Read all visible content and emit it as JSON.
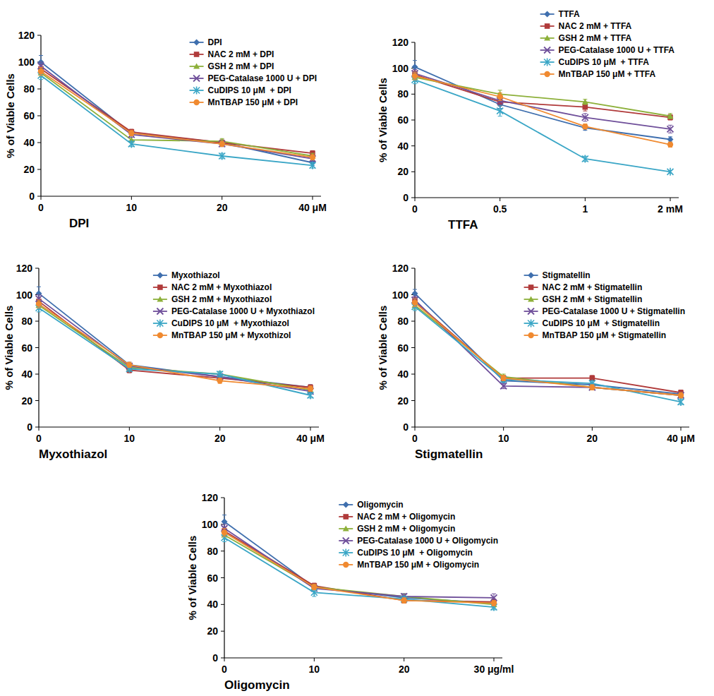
{
  "chart_data": [
    {
      "type": "line",
      "x_label": "DPI",
      "y_label": "% of Viable Cells",
      "categories": [
        "0",
        "10",
        "20",
        "40 μM"
      ],
      "ylim": [
        0,
        120
      ],
      "yticks": [
        0,
        20,
        40,
        60,
        80,
        100,
        120
      ],
      "grid": false,
      "legend": "top-right",
      "series": [
        {
          "name": "DPI",
          "color": "#3f6fae",
          "marker": "diamond",
          "values": [
            100,
            47,
            40,
            25
          ],
          "errors": [
            5,
            2,
            2,
            2
          ]
        },
        {
          "name": "NAC 2 mM + DPI",
          "color": "#b03a3a",
          "marker": "square",
          "values": [
            95,
            48,
            40,
            32
          ],
          "errors": [
            3,
            2,
            2,
            2
          ]
        },
        {
          "name": "GSH 2 mM + DPI",
          "color": "#8db03a",
          "marker": "triangle",
          "values": [
            92,
            42,
            41,
            30
          ],
          "errors": [
            3,
            2,
            2,
            2
          ]
        },
        {
          "name": "PEG-Catalase 1000 U + DPI",
          "color": "#6f4f9a",
          "marker": "x",
          "values": [
            97,
            46,
            39,
            28
          ],
          "errors": [
            3,
            2,
            2,
            2
          ]
        },
        {
          "name": "CuDIPS 10 μM  + DPI",
          "color": "#3aa6c6",
          "marker": "star",
          "values": [
            90,
            39,
            30,
            23
          ],
          "errors": [
            3,
            2,
            2,
            2
          ]
        },
        {
          "name": "MnTBAP 150 μM + DPI",
          "color": "#f08a30",
          "marker": "circle",
          "values": [
            93,
            47,
            39,
            29
          ],
          "errors": [
            3,
            2,
            2,
            2
          ]
        }
      ]
    },
    {
      "type": "line",
      "x_label": "TTFA",
      "y_label": "% of Viable Cells",
      "categories": [
        "0",
        "0.5",
        "1",
        "2 mM"
      ],
      "ylim": [
        0,
        120
      ],
      "yticks": [
        0,
        20,
        40,
        60,
        80,
        100,
        120
      ],
      "grid": false,
      "legend": "top-right",
      "series": [
        {
          "name": "TTFA",
          "color": "#3f6fae",
          "marker": "diamond",
          "values": [
            101,
            72,
            54,
            45
          ],
          "errors": [
            5,
            3,
            2,
            2
          ]
        },
        {
          "name": "NAC 2 mM + TTFA",
          "color": "#b03a3a",
          "marker": "square",
          "values": [
            95,
            74,
            70,
            62
          ],
          "errors": [
            3,
            3,
            3,
            2
          ]
        },
        {
          "name": "GSH 2 mM + TTFA",
          "color": "#8db03a",
          "marker": "triangle",
          "values": [
            93,
            80,
            74,
            63
          ],
          "errors": [
            3,
            3,
            2,
            2
          ]
        },
        {
          "name": "PEG-Catalase 1000 U + TTFA",
          "color": "#6f4f9a",
          "marker": "x",
          "values": [
            96,
            75,
            62,
            53
          ],
          "errors": [
            3,
            3,
            3,
            3
          ]
        },
        {
          "name": "CuDIPS 10 μM  + TTFA",
          "color": "#3aa6c6",
          "marker": "star",
          "values": [
            91,
            67,
            30,
            20
          ],
          "errors": [
            3,
            4,
            2,
            1
          ]
        },
        {
          "name": "MnTBAP 150 μM + TTFA",
          "color": "#f08a30",
          "marker": "circle",
          "values": [
            94,
            78,
            55,
            41
          ],
          "errors": [
            3,
            3,
            2,
            2
          ]
        }
      ]
    },
    {
      "type": "line",
      "x_label": "Myxothiazol",
      "y_label": "% of Viable Cells",
      "categories": [
        "0",
        "10",
        "20",
        "40 μM"
      ],
      "ylim": [
        0,
        120
      ],
      "yticks": [
        0,
        20,
        40,
        60,
        80,
        100,
        120
      ],
      "grid": false,
      "legend": "top-right",
      "series": [
        {
          "name": "Myxothiazol",
          "color": "#3f6fae",
          "marker": "diamond",
          "values": [
            101,
            47,
            38,
            30
          ],
          "errors": [
            5,
            2,
            2,
            2
          ]
        },
        {
          "name": "NAC 2 mM + Myxothiazol",
          "color": "#b03a3a",
          "marker": "square",
          "values": [
            95,
            43,
            37,
            30
          ],
          "errors": [
            3,
            2,
            2,
            2
          ]
        },
        {
          "name": "GSH 2 mM + Myxothiazol",
          "color": "#8db03a",
          "marker": "triangle",
          "values": [
            92,
            45,
            40,
            28
          ],
          "errors": [
            3,
            2,
            2,
            2
          ]
        },
        {
          "name": "PEG-Catalase 1000 U + Myxothiazol",
          "color": "#6f4f9a",
          "marker": "x",
          "values": [
            97,
            46,
            38,
            27
          ],
          "errors": [
            3,
            2,
            2,
            2
          ]
        },
        {
          "name": "CuDIPS 10 μM  + Myxothiazol",
          "color": "#3aa6c6",
          "marker": "star",
          "values": [
            90,
            44,
            40,
            24
          ],
          "errors": [
            3,
            2,
            2,
            2
          ]
        },
        {
          "name": "MnTBAP 150 μM + Myxothizol",
          "color": "#f08a30",
          "marker": "circle",
          "values": [
            93,
            47,
            35,
            29
          ],
          "errors": [
            3,
            2,
            2,
            2
          ]
        }
      ]
    },
    {
      "type": "line",
      "x_label": "Stigmatellin",
      "y_label": "% of Viable Cells",
      "categories": [
        "0",
        "10",
        "20",
        "40 μM"
      ],
      "ylim": [
        0,
        120
      ],
      "yticks": [
        0,
        20,
        40,
        60,
        80,
        100,
        120
      ],
      "grid": false,
      "legend": "top-right",
      "series": [
        {
          "name": "Stigmatellin",
          "color": "#3f6fae",
          "marker": "diamond",
          "values": [
            101,
            35,
            32,
            25
          ],
          "errors": [
            3,
            2,
            2,
            2
          ]
        },
        {
          "name": "NAC 2 mM + Stigmatellin",
          "color": "#b03a3a",
          "marker": "square",
          "values": [
            95,
            37,
            37,
            26
          ],
          "errors": [
            3,
            2,
            2,
            2
          ]
        },
        {
          "name": "GSH 2 mM + Stigmatellin",
          "color": "#8db03a",
          "marker": "triangle",
          "values": [
            92,
            38,
            30,
            24
          ],
          "errors": [
            3,
            2,
            2,
            2
          ]
        },
        {
          "name": "PEG-Catalase 1000 U + Stigmatellin",
          "color": "#6f4f9a",
          "marker": "x",
          "values": [
            96,
            31,
            30,
            24
          ],
          "errors": [
            3,
            2,
            2,
            2
          ]
        },
        {
          "name": "CuDIPS 10 μM  + Stigmatellin",
          "color": "#3aa6c6",
          "marker": "star",
          "values": [
            91,
            36,
            33,
            19
          ],
          "errors": [
            3,
            2,
            2,
            2
          ]
        },
        {
          "name": "MnTBAP 150 μM + Stigmatellin",
          "color": "#f08a30",
          "marker": "circle",
          "values": [
            94,
            37,
            30,
            24
          ],
          "errors": [
            3,
            2,
            2,
            2
          ]
        }
      ]
    },
    {
      "type": "line",
      "x_label": "Oligomycin",
      "y_label": "% of Viable Cells",
      "categories": [
        "0",
        "10",
        "20",
        "30 μg/ml"
      ],
      "ylim": [
        0,
        120
      ],
      "yticks": [
        0,
        20,
        40,
        60,
        80,
        100,
        120
      ],
      "grid": false,
      "legend": "top-right",
      "series": [
        {
          "name": "Oligomycin",
          "color": "#3f6fae",
          "marker": "diamond",
          "values": [
            102,
            53,
            45,
            41
          ],
          "errors": [
            5,
            2,
            3,
            2
          ]
        },
        {
          "name": "NAC 2 mM + Oligomycin",
          "color": "#b03a3a",
          "marker": "square",
          "values": [
            95,
            54,
            43,
            42
          ],
          "errors": [
            3,
            2,
            2,
            2
          ]
        },
        {
          "name": "GSH 2 mM + Oligomycin",
          "color": "#8db03a",
          "marker": "triangle",
          "values": [
            92,
            53,
            46,
            40
          ],
          "errors": [
            3,
            2,
            2,
            2
          ]
        },
        {
          "name": "PEG-Catalase 1000 U + Oligomycin",
          "color": "#6f4f9a",
          "marker": "x",
          "values": [
            97,
            52,
            46,
            45
          ],
          "errors": [
            3,
            2,
            2,
            3
          ]
        },
        {
          "name": "CuDIPS 10 μM  + Oligomycin",
          "color": "#3aa6c6",
          "marker": "star",
          "values": [
            90,
            49,
            44,
            38
          ],
          "errors": [
            3,
            3,
            2,
            2
          ]
        },
        {
          "name": "MnTBAP 150 μM + Oligomycin",
          "color": "#f08a30",
          "marker": "circle",
          "values": [
            94,
            53,
            43,
            41
          ],
          "errors": [
            3,
            2,
            2,
            2
          ]
        }
      ]
    }
  ]
}
